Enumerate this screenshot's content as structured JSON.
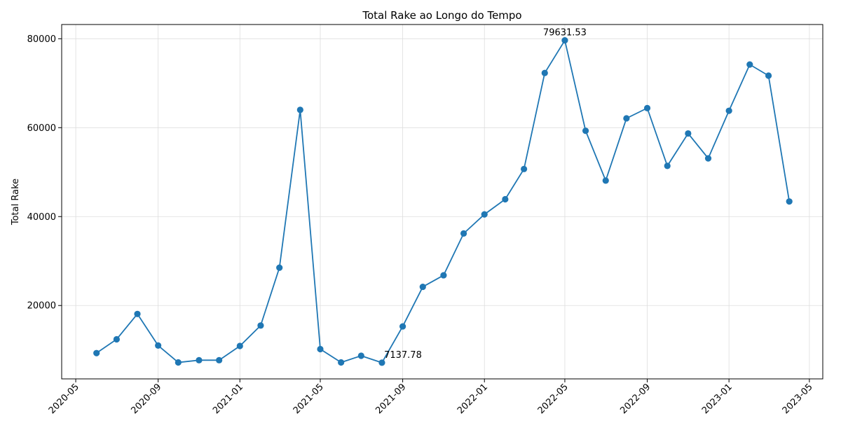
{
  "chart_data": {
    "type": "line",
    "title": "Total Rake ao Longo do Tempo",
    "xlabel": "",
    "ylabel": "Total Rake",
    "grid": true,
    "xlim": [
      "2020-04-10",
      "2023-05-21"
    ],
    "ylim": [
      3500,
      83200
    ],
    "x_ticks": [
      "2020-05",
      "2020-09",
      "2021-01",
      "2021-05",
      "2021-09",
      "2022-01",
      "2022-05",
      "2022-09",
      "2023-01",
      "2023-05"
    ],
    "y_ticks": [
      20000,
      40000,
      60000,
      80000
    ],
    "series": [
      {
        "color": "#1f77b4",
        "marker": "circle",
        "x": [
          "2020-06-01",
          "2020-07-01",
          "2020-08-01",
          "2020-09-01",
          "2020-10-01",
          "2020-11-01",
          "2020-12-01",
          "2021-01-01",
          "2021-02-01",
          "2021-03-01",
          "2021-04-01",
          "2021-05-01",
          "2021-06-01",
          "2021-07-01",
          "2021-08-01",
          "2021-09-01",
          "2021-10-01",
          "2021-11-01",
          "2021-12-01",
          "2022-01-01",
          "2022-02-01",
          "2022-03-01",
          "2022-04-01",
          "2022-05-01",
          "2022-06-01",
          "2022-07-01",
          "2022-08-01",
          "2022-09-01",
          "2022-10-01",
          "2022-11-01",
          "2022-12-01",
          "2023-01-01",
          "2023-02-01",
          "2023-03-01",
          "2023-04-01"
        ],
        "y": [
          9300,
          12400,
          18100,
          11000,
          7200,
          7700,
          7700,
          10900,
          15500,
          28500,
          64000,
          10200,
          7200,
          8700,
          7137.78,
          15300,
          24200,
          26800,
          36200,
          40500,
          43900,
          50700,
          72300,
          79631.53,
          59300,
          48100,
          62100,
          64400,
          51400,
          58700,
          53100,
          63800,
          74200,
          71700,
          43400
        ]
      }
    ],
    "annotations": [
      {
        "x": "2022-05-01",
        "y": 79631.53,
        "text": "79631.53"
      },
      {
        "x": "2021-08-01",
        "y": 7137.78,
        "text": "7137.78"
      }
    ]
  }
}
